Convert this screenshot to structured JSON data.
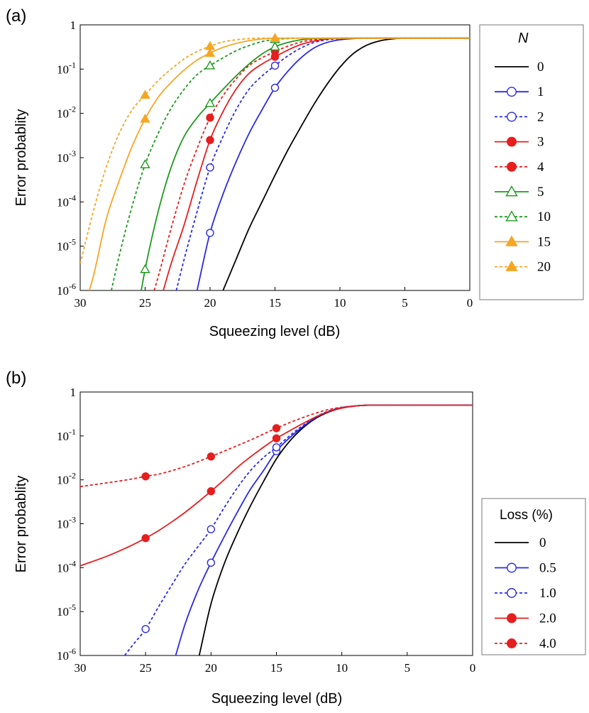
{
  "chart_data": [
    {
      "type": "line",
      "panel_label": "(a)",
      "xlabel": "Squeezing level (dB)",
      "ylabel": "Error probablity",
      "xlim": [
        30,
        0
      ],
      "x_ticks": [
        "30",
        "25",
        "20",
        "15",
        "10",
        "5",
        "0"
      ],
      "ylim_log10": [
        -6,
        0
      ],
      "y_ticks": [
        {
          "base": "1",
          "exp": ""
        },
        {
          "base": "10",
          "exp": "-1"
        },
        {
          "base": "10",
          "exp": "-2"
        },
        {
          "base": "10",
          "exp": "-3"
        },
        {
          "base": "10",
          "exp": "-4"
        },
        {
          "base": "10",
          "exp": "-5"
        },
        {
          "base": "10",
          "exp": "-6"
        }
      ],
      "legend_title": "N",
      "legend_position": "right",
      "series": [
        {
          "name": "0",
          "color": "#000000",
          "dashed": false,
          "marker": "none",
          "x": [
            19.0,
            18.0,
            17.0,
            16.0,
            15.0,
            14.0,
            13.0,
            12.0,
            11.0,
            10.0,
            9.0,
            8.0,
            7.0,
            6.0,
            5.0,
            3.0,
            0.0
          ],
          "y": [
            1e-06,
            5e-06,
            2.5e-05,
            0.0001,
            0.0004,
            0.0015,
            0.005,
            0.016,
            0.045,
            0.11,
            0.22,
            0.34,
            0.43,
            0.48,
            0.5,
            0.5,
            0.5
          ],
          "marker_x": []
        },
        {
          "name": "1",
          "color": "#2a2ae6",
          "dashed": false,
          "marker": "circle-open",
          "x": [
            21.0,
            20.0,
            19.0,
            18.0,
            17.0,
            16.0,
            15.0,
            14.0,
            13.0,
            12.0,
            11.0,
            10.0,
            9.0,
            8.0,
            7.0,
            5.0,
            0.0
          ],
          "y": [
            1e-06,
            2e-05,
            0.00015,
            0.0008,
            0.0035,
            0.012,
            0.038,
            0.09,
            0.18,
            0.3,
            0.4,
            0.46,
            0.49,
            0.5,
            0.5,
            0.5,
            0.5
          ],
          "marker_x": [
            20,
            15
          ]
        },
        {
          "name": "2",
          "color": "#2a2ae6",
          "dashed": true,
          "marker": "circle-open",
          "x": [
            22.6,
            22.0,
            21.0,
            20.0,
            19.0,
            18.0,
            17.0,
            16.0,
            15.0,
            14.0,
            13.0,
            12.0,
            11.0,
            10.0,
            9.0,
            7.0,
            0.0
          ],
          "y": [
            1e-06,
            5e-06,
            6e-05,
            0.0006,
            0.003,
            0.012,
            0.035,
            0.07,
            0.12,
            0.2,
            0.3,
            0.4,
            0.46,
            0.49,
            0.5,
            0.5,
            0.5
          ],
          "marker_x": [
            20,
            15
          ]
        },
        {
          "name": "3",
          "color": "#e61e1e",
          "dashed": false,
          "marker": "circle-filled",
          "x": [
            23.6,
            23.0,
            22.0,
            21.0,
            20.0,
            19.0,
            18.0,
            17.0,
            16.0,
            15.0,
            14.0,
            13.0,
            12.0,
            11.0,
            10.0,
            8.0,
            0.0
          ],
          "y": [
            1e-06,
            4e-06,
            3e-05,
            0.0003,
            0.0025,
            0.011,
            0.035,
            0.08,
            0.13,
            0.19,
            0.27,
            0.36,
            0.43,
            0.48,
            0.5,
            0.5,
            0.5
          ],
          "marker_x": [
            20,
            15
          ]
        },
        {
          "name": "4",
          "color": "#e61e1e",
          "dashed": true,
          "marker": "circle-filled",
          "x": [
            24.3,
            24.0,
            23.0,
            22.0,
            21.0,
            20.0,
            19.0,
            18.0,
            17.0,
            16.0,
            15.0,
            14.0,
            13.0,
            12.0,
            11.0,
            9.0,
            0.0
          ],
          "y": [
            1e-06,
            2e-06,
            2.5e-05,
            0.00025,
            0.0016,
            0.008,
            0.025,
            0.06,
            0.12,
            0.18,
            0.25,
            0.33,
            0.41,
            0.46,
            0.49,
            0.5,
            0.5
          ],
          "marker_x": [
            20,
            15
          ]
        },
        {
          "name": "5",
          "color": "#1e9a1e",
          "dashed": false,
          "marker": "triangle-open",
          "x": [
            25.3,
            25.0,
            24.0,
            23.0,
            22.0,
            21.0,
            20.0,
            19.0,
            18.0,
            17.0,
            16.0,
            15.0,
            14.0,
            13.0,
            12.0,
            11.0,
            10.0,
            0.0
          ],
          "y": [
            1e-06,
            3e-06,
            6e-05,
            0.0006,
            0.003,
            0.008,
            0.017,
            0.035,
            0.07,
            0.13,
            0.22,
            0.32,
            0.4,
            0.46,
            0.49,
            0.5,
            0.5,
            0.5
          ],
          "marker_x": [
            25,
            20,
            15
          ]
        },
        {
          "name": "10",
          "color": "#1e9a1e",
          "dashed": true,
          "marker": "triangle-open",
          "x": [
            27.6,
            27.0,
            26.0,
            25.0,
            24.0,
            23.0,
            22.0,
            21.0,
            20.0,
            19.0,
            18.0,
            17.0,
            16.0,
            15.0,
            14.0,
            13.0,
            12.0,
            0.0
          ],
          "y": [
            1e-06,
            6e-06,
            8e-05,
            0.0007,
            0.0035,
            0.013,
            0.035,
            0.075,
            0.12,
            0.18,
            0.26,
            0.34,
            0.42,
            0.47,
            0.49,
            0.5,
            0.5,
            0.5
          ],
          "marker_x": [
            25,
            20,
            15
          ]
        },
        {
          "name": "15",
          "color": "#f5a623",
          "dashed": false,
          "marker": "triangle-filled",
          "x": [
            29.3,
            29.0,
            28.0,
            27.0,
            26.0,
            25.0,
            24.0,
            23.0,
            22.0,
            21.0,
            20.0,
            19.0,
            18.0,
            17.0,
            16.0,
            15.0,
            14.0,
            0.0
          ],
          "y": [
            1e-06,
            2e-06,
            4e-05,
            0.0003,
            0.0018,
            0.0075,
            0.023,
            0.05,
            0.095,
            0.16,
            0.23,
            0.31,
            0.38,
            0.44,
            0.48,
            0.5,
            0.5,
            0.5
          ],
          "marker_x": [
            25,
            20,
            15
          ]
        },
        {
          "name": "20",
          "color": "#f5a623",
          "dashed": true,
          "marker": "triangle-filled",
          "x": [
            30.0,
            29.0,
            28.0,
            27.0,
            26.0,
            25.0,
            24.0,
            23.0,
            22.0,
            21.0,
            20.0,
            19.0,
            18.0,
            17.0,
            16.0,
            15.0,
            0.0
          ],
          "y": [
            4e-06,
            6e-05,
            0.0006,
            0.0035,
            0.012,
            0.026,
            0.055,
            0.1,
            0.17,
            0.25,
            0.33,
            0.41,
            0.46,
            0.49,
            0.5,
            0.5,
            0.5
          ],
          "marker_x": [
            25,
            20,
            15
          ]
        }
      ]
    },
    {
      "type": "line",
      "panel_label": "(b)",
      "xlabel": "Squeezing level (dB)",
      "ylabel": "Error probablity",
      "xlim": [
        30,
        0
      ],
      "x_ticks": [
        "30",
        "25",
        "20",
        "15",
        "10",
        "5",
        "0"
      ],
      "ylim_log10": [
        -6,
        0
      ],
      "y_ticks": [
        {
          "base": "1",
          "exp": ""
        },
        {
          "base": "10",
          "exp": "-1"
        },
        {
          "base": "10",
          "exp": "-2"
        },
        {
          "base": "10",
          "exp": "-3"
        },
        {
          "base": "10",
          "exp": "-4"
        },
        {
          "base": "10",
          "exp": "-5"
        },
        {
          "base": "10",
          "exp": "-6"
        }
      ],
      "legend_title": "Loss (%)",
      "legend_position": "right",
      "series": [
        {
          "name": "0",
          "color": "#000000",
          "dashed": false,
          "marker": "none",
          "x": [
            20.9,
            20.0,
            19.0,
            18.0,
            17.0,
            16.0,
            15.0,
            14.0,
            13.0,
            12.0,
            11.0,
            10.0,
            9.0,
            8.0,
            7.0,
            5.0,
            0.0
          ],
          "y": [
            1e-06,
            1.5e-05,
            0.00012,
            0.0006,
            0.0025,
            0.009,
            0.03,
            0.075,
            0.15,
            0.25,
            0.35,
            0.43,
            0.48,
            0.5,
            0.5,
            0.5,
            0.5
          ],
          "marker_x": []
        },
        {
          "name": "0.5",
          "color": "#2a2ae6",
          "dashed": false,
          "marker": "circle-open",
          "x": [
            22.7,
            22.0,
            21.0,
            20.0,
            19.0,
            18.0,
            17.0,
            16.0,
            15.0,
            14.0,
            13.0,
            12.0,
            11.0,
            10.0,
            9.0,
            8.0,
            7.0,
            5.0,
            0.0
          ],
          "y": [
            1e-06,
            5e-06,
            3e-05,
            0.00013,
            0.0005,
            0.0018,
            0.006,
            0.016,
            0.045,
            0.09,
            0.16,
            0.26,
            0.36,
            0.44,
            0.48,
            0.5,
            0.5,
            0.5,
            0.5
          ],
          "marker_x": [
            20,
            15
          ]
        },
        {
          "name": "1.0",
          "color": "#2a2ae6",
          "dashed": true,
          "marker": "circle-open",
          "x": [
            26.6,
            26.0,
            25.0,
            24.0,
            23.0,
            22.0,
            21.0,
            20.0,
            19.0,
            18.0,
            17.0,
            16.0,
            15.0,
            14.0,
            13.0,
            12.0,
            11.0,
            10.0,
            9.0,
            8.0,
            7.0,
            0.0
          ],
          "y": [
            1e-06,
            1.7e-06,
            4e-06,
            1.3e-05,
            4e-05,
            0.00012,
            0.0003,
            0.00075,
            0.0023,
            0.0065,
            0.016,
            0.032,
            0.055,
            0.1,
            0.17,
            0.27,
            0.37,
            0.44,
            0.48,
            0.5,
            0.5,
            0.5
          ],
          "marker_x": [
            25,
            20,
            15
          ]
        },
        {
          "name": "2.0",
          "color": "#e61e1e",
          "dashed": false,
          "marker": "circle-filled",
          "x": [
            30.0,
            28.0,
            27.0,
            26.0,
            25.0,
            24.0,
            23.0,
            22.0,
            21.0,
            20.0,
            19.0,
            18.0,
            17.0,
            16.0,
            15.0,
            14.0,
            13.0,
            12.0,
            11.0,
            10.0,
            9.0,
            8.0,
            7.0,
            0.0
          ],
          "y": [
            0.00011,
            0.00018,
            0.00024,
            0.00033,
            0.00047,
            0.0007,
            0.0011,
            0.0018,
            0.0031,
            0.0055,
            0.01,
            0.019,
            0.033,
            0.055,
            0.088,
            0.13,
            0.19,
            0.27,
            0.36,
            0.43,
            0.48,
            0.5,
            0.5,
            0.5
          ],
          "marker_x": [
            25,
            20,
            15
          ]
        },
        {
          "name": "4.0",
          "color": "#e61e1e",
          "dashed": true,
          "marker": "circle-filled",
          "x": [
            30.0,
            28.0,
            26.0,
            25.0,
            24.0,
            22.0,
            20.0,
            19.0,
            18.0,
            17.0,
            16.0,
            15.0,
            14.0,
            13.0,
            12.0,
            11.0,
            10.0,
            9.0,
            8.0,
            7.0,
            0.0
          ],
          "y": [
            0.007,
            0.0085,
            0.0105,
            0.012,
            0.0135,
            0.02,
            0.034,
            0.045,
            0.06,
            0.08,
            0.11,
            0.15,
            0.2,
            0.26,
            0.33,
            0.4,
            0.45,
            0.48,
            0.5,
            0.5,
            0.5
          ],
          "marker_x": [
            25,
            20,
            15
          ]
        }
      ]
    }
  ]
}
